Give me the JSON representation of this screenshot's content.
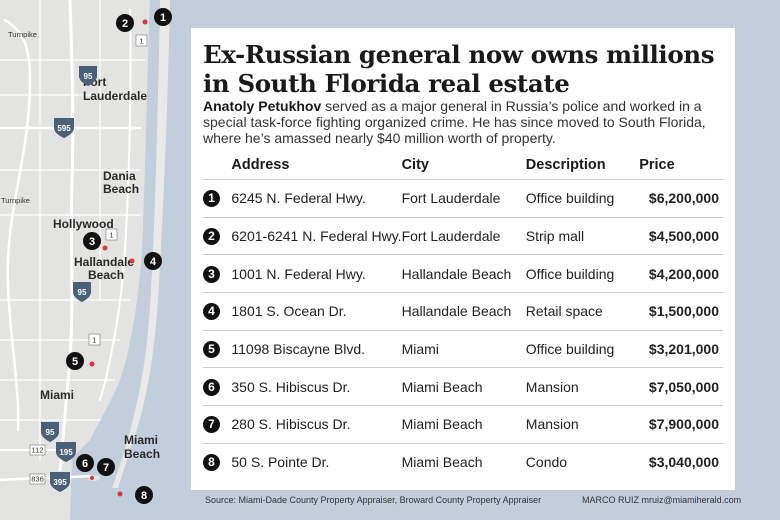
{
  "title": "Ex-Russian general now owns millions in South Florida real estate",
  "intro_lead": "Anatoly Petukhov",
  "intro_rest": " served as a major general in Russia’s police and worked in a special task-force fighting organized crime. He has since moved to South Florida, where he’s amassed nearly $40 million worth of property.",
  "table": {
    "headers": {
      "address": "Address",
      "city": "City",
      "description": "Description",
      "price": "Price"
    },
    "rows": [
      {
        "num": "1",
        "address": "6245 N. Federal Hwy.",
        "city": "Fort Lauderdale",
        "description": "Office building",
        "price": "$6,200,000"
      },
      {
        "num": "2",
        "address": "6201-6241 N. Federal Hwy.",
        "city": "Fort Lauderdale",
        "description": "Strip mall",
        "price": "$4,500,000"
      },
      {
        "num": "3",
        "address": "1001 N. Federal Hwy.",
        "city": "Hallandale Beach",
        "description": "Office building",
        "price": "$4,200,000"
      },
      {
        "num": "4",
        "address": "1801 S. Ocean Dr.",
        "city": "Hallandale Beach",
        "description": "Retail space",
        "price": "$1,500,000"
      },
      {
        "num": "5",
        "address": "11098 Biscayne Blvd.",
        "city": "Miami",
        "description": "Office building",
        "price": "$3,201,000"
      },
      {
        "num": "6",
        "address": "350 S. Hibiscus Dr.",
        "city": "Miami Beach",
        "description": "Mansion",
        "price": "$7,050,000"
      },
      {
        "num": "7",
        "address": "280 S. Hibiscus Dr.",
        "city": "Miami Beach",
        "description": "Mansion",
        "price": "$7,900,000"
      },
      {
        "num": "8",
        "address": "50 S. Pointe Dr.",
        "city": "Miami Beach",
        "description": "Condo",
        "price": "$3,040,000"
      }
    ]
  },
  "map": {
    "labels": {
      "fort_lauderdale_1": "Fort",
      "fort_lauderdale_2": "Lauderdale",
      "dania_1": "Dania",
      "dania_2": "Beach",
      "hollywood": "Hollywood",
      "hallandale_1": "Hallandale",
      "hallandale_2": "Beach",
      "miami": "Miami",
      "miami_beach_1": "Miami",
      "miami_beach_2": "Beach",
      "turnpike_1": "Turnpike",
      "turnpike_2": "Turnpike"
    },
    "shields": {
      "i95_a": "95",
      "i595": "595",
      "i95_b": "95",
      "i95_c": "95",
      "i195": "195",
      "i395": "395"
    },
    "routes": {
      "us1_a": "1",
      "us1_b": "1",
      "us1_c": "1",
      "r112": "112",
      "r836": "836"
    },
    "markers": [
      "1",
      "2",
      "3",
      "4",
      "5",
      "6",
      "7",
      "8"
    ]
  },
  "footer": {
    "source": "Source: Miami-Dade County Property Appraiser, Broward County Property Appraiser",
    "credit": "MARCO RUIZ mruiz@miamiherald.com"
  },
  "colors": {
    "land": "#e3e3e1",
    "water": "#c3cedc",
    "road": "#ffffff",
    "marker": "#111111",
    "shield": "#4a5f78"
  }
}
